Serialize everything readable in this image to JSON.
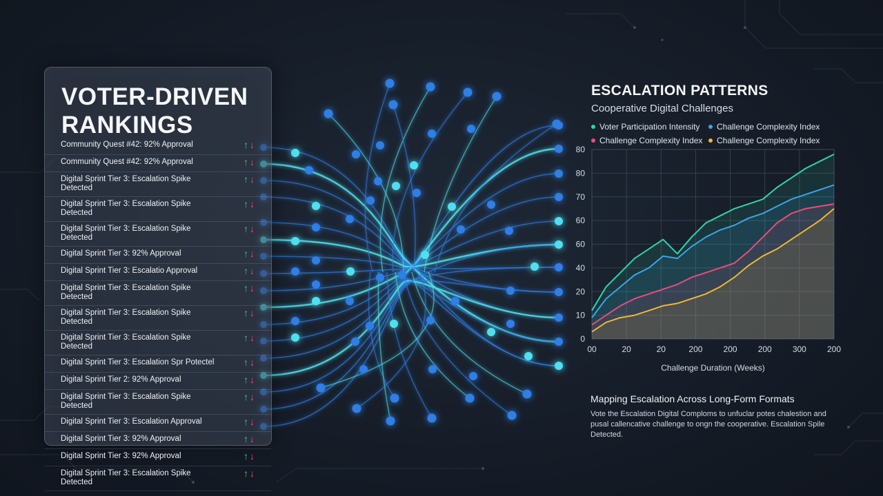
{
  "left_panel": {
    "title": "VOTER-DRIVEN RANKINGS",
    "items": [
      "Community Quest #42: 92% Approval",
      "Community Quest #42: 92% Approval",
      "Digital Sprint Tier 3: Escalation Spike Detected",
      "Digital Sprint Tier 3: Escalation Spike Detected",
      "Digital Sprint Tier 3: Escalation Spike Detected",
      "Digital Sprint Tier 3: 92% Approval",
      "Digital Sprint Tier 3: Escalatio Approval",
      "Digital Sprint Tier 3: Escalation Spike Detected",
      "Digital Sprint Tier 3: Escalation Spike Detected",
      "Digital Sprint Tier 3: Escalation Spike Detected",
      "Digital Sprint Tier 3: Escalation Spr Potectel",
      "Digital Sprint Tier 2: 92% Approval",
      "Digital Sprint Tier 3: Escalation Spike Detected",
      "Digital Sprint Tier 3: Escalation Approval",
      "Digital Sprint Tier 3: 92% Approval",
      "Digital Sprint Tier 3: 92% Approval",
      "Digital Sprint Tier 3: Escalation Spike Detected"
    ],
    "up_icon": "arrow-up",
    "down_icon": "arrow-down",
    "up_glyph": "↑",
    "down_glyph": "↓"
  },
  "right_panel": {
    "title": "ESCALATION PATTERNS",
    "subtitle": "Cooperative Digital Challenges",
    "footer_title": "Mapping Escalation Across Long-Form Formats",
    "footer_text": "Vote the Escalation Digital Comploms to unfuclar potes chalestion and pusal callencative challenge to ongn the cooperative. Escalation Spile Detected."
  },
  "colors": {
    "teal": "#2fd5b0",
    "blue": "#3aa6e8",
    "pink": "#ee4b78",
    "yellow": "#f2b733",
    "node_blue": "#2f7fe6",
    "node_cyan": "#4fe0f0",
    "up": "#2fd08a",
    "down": "#ef4a68"
  },
  "chart_data": {
    "type": "area",
    "title": "ESCALATION PATTERNS",
    "subtitle": "Cooperative Digital Challenges",
    "xlabel": "Challenge Duration (Weeks)",
    "ylabel": "",
    "x_tick_labels": [
      "00",
      "20",
      "20",
      "200",
      "200",
      "200",
      "300",
      "200"
    ],
    "y_tick_labels": [
      "0",
      "10",
      "20",
      "40",
      "60",
      "60",
      "70",
      "80",
      "80"
    ],
    "ylim": [
      0,
      8
    ],
    "grid": true,
    "legend_position": "top",
    "series": [
      {
        "name": "Voter Participation Intensity",
        "color_key": "teal",
        "values": [
          1.2,
          2.2,
          2.8,
          3.4,
          3.8,
          4.2,
          3.6,
          4.3,
          4.9,
          5.2,
          5.5,
          5.7,
          5.9,
          6.4,
          6.8,
          7.2,
          7.5,
          7.8
        ]
      },
      {
        "name": "Challenge Complexity Index",
        "color_key": "blue",
        "values": [
          0.9,
          1.7,
          2.2,
          2.7,
          3.0,
          3.5,
          3.4,
          3.9,
          4.3,
          4.6,
          4.8,
          5.1,
          5.3,
          5.6,
          5.9,
          6.1,
          6.3,
          6.5
        ]
      },
      {
        "name": "Challenge Complexity Index",
        "color_key": "pink",
        "values": [
          0.6,
          1.0,
          1.4,
          1.7,
          1.9,
          2.1,
          2.3,
          2.6,
          2.8,
          3.0,
          3.2,
          3.7,
          4.3,
          4.9,
          5.3,
          5.5,
          5.6,
          5.7
        ]
      },
      {
        "name": "Challenge Complexity Index",
        "color_key": "yellow",
        "values": [
          0.3,
          0.7,
          0.9,
          1.0,
          1.2,
          1.4,
          1.5,
          1.7,
          1.9,
          2.2,
          2.6,
          3.1,
          3.5,
          3.8,
          4.2,
          4.6,
          5.0,
          5.5
        ]
      }
    ]
  }
}
